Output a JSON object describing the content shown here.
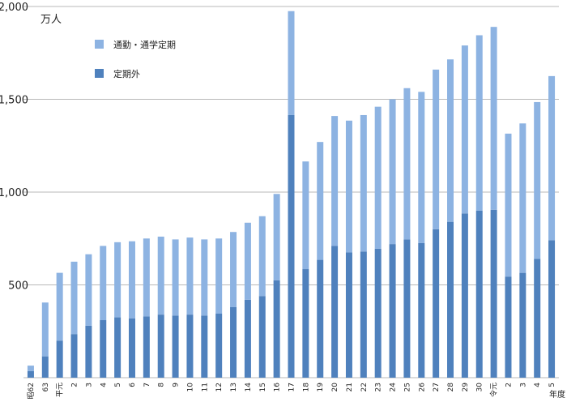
{
  "chart_data": {
    "type": "bar",
    "stacked": true,
    "unit_label": "万人",
    "xlabel": "年度",
    "ylim": [
      0,
      2000
    ],
    "yticks": [
      "2,000",
      "1,500",
      "1,000",
      "500"
    ],
    "ytick_values": [
      2000,
      1500,
      1000,
      500
    ],
    "grid": true,
    "legend_position": "top-left",
    "categories": [
      "昭62",
      "63",
      "平元",
      "2",
      "3",
      "4",
      "5",
      "6",
      "7",
      "8",
      "9",
      "10",
      "11",
      "12",
      "13",
      "14",
      "15",
      "16",
      "17",
      "18",
      "19",
      "20",
      "21",
      "22",
      "23",
      "24",
      "25",
      "26",
      "27",
      "28",
      "29",
      "30",
      "令元",
      "2",
      "3",
      "4",
      "5"
    ],
    "series": [
      {
        "name": "定期外",
        "color": "#4f81bd",
        "values": [
          35,
          115,
          200,
          235,
          280,
          310,
          325,
          320,
          330,
          340,
          335,
          340,
          335,
          345,
          380,
          420,
          440,
          525,
          1415,
          585,
          635,
          710,
          675,
          680,
          695,
          720,
          745,
          725,
          800,
          840,
          885,
          900,
          905,
          545,
          565,
          640,
          740
        ]
      },
      {
        "name": "通勤・通学定期",
        "color": "#8db3e2",
        "values": [
          30,
          290,
          365,
          390,
          385,
          400,
          405,
          415,
          420,
          420,
          410,
          415,
          410,
          405,
          405,
          415,
          430,
          465,
          560,
          580,
          635,
          700,
          710,
          735,
          765,
          780,
          815,
          815,
          860,
          875,
          905,
          945,
          985,
          770,
          805,
          845,
          885
        ]
      }
    ]
  }
}
